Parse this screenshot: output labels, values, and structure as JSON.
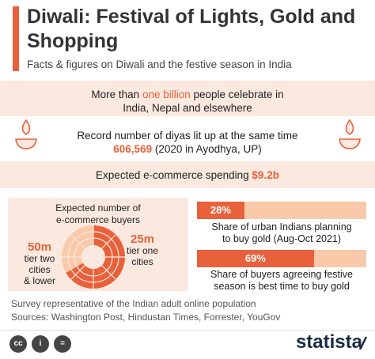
{
  "header": {
    "title": "Diwali: Festival of Lights, Gold and Shopping",
    "subtitle": "Facts & figures on Diwali and the festive season in India"
  },
  "facts": {
    "celebrants": {
      "prefix": "More than",
      "highlight": "one billion",
      "suffix": "people celebrate in",
      "line2": "India, Nepal and elsewhere"
    },
    "diyas": {
      "line1": "Record number of diyas lit up at the same time",
      "value": "606,569",
      "note": "(2020 in Ayodhya, UP)"
    },
    "ecommerce": {
      "label": "Expected e-commerce spending",
      "value": "$9.2b"
    }
  },
  "buyers": {
    "title_line1": "Expected number of",
    "title_line2": "e-commerce buyers",
    "segments": [
      {
        "value": "50m",
        "line1": "tier two",
        "line2": "cities",
        "line3": "& lower"
      },
      {
        "value": "25m",
        "line1": "tier one",
        "line2": "cities"
      }
    ]
  },
  "chart_data": {
    "type": "bar",
    "categories": [
      "Share of urban Indians planning to buy gold (Aug-Oct 2021)",
      "Share of buyers agreeing festive season is best time to buy gold"
    ],
    "values": [
      28,
      69
    ],
    "value_labels": [
      "28%",
      "69%"
    ],
    "ylim": [
      0,
      100
    ],
    "captions": [
      {
        "line1": "Share of urban Indians planning",
        "line2": "to buy gold (Aug-Oct 2021)"
      },
      {
        "line1": "Share of buyers agreeing festive",
        "line2": "season is best time to buy gold"
      }
    ]
  },
  "donut_data": {
    "type": "pie",
    "categories": [
      "tier two cities & lower",
      "tier one cities"
    ],
    "values": [
      50,
      25
    ],
    "unit": "m"
  },
  "footer": {
    "survey": "Survey representative of the Indian adult online population",
    "sources": "Sources: Washington Post, Hindustan Times, Forrester, YouGov",
    "license_icons": [
      "cc",
      "i",
      "="
    ],
    "brand": "statista"
  },
  "colors": {
    "accent": "#e8613a",
    "light": "#f9c9a9",
    "band": "#fbe9df",
    "brand": "#1b2b44"
  }
}
